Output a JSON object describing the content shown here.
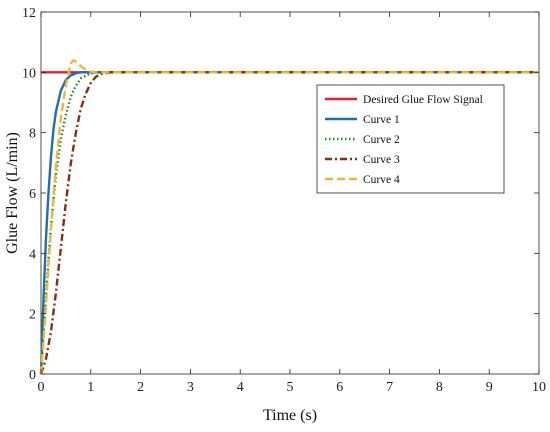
{
  "chart_data": {
    "type": "line",
    "xlabel": "Time (s)",
    "ylabel": "Glue Flow (L/min)",
    "xlim": [
      0,
      10
    ],
    "ylim": [
      0,
      12
    ],
    "xticks": [
      0,
      1,
      2,
      3,
      4,
      5,
      6,
      7,
      8,
      9,
      10
    ],
    "yticks": [
      0,
      2,
      4,
      6,
      8,
      10,
      12
    ],
    "grid": false,
    "legend_position": "right",
    "series": [
      {
        "name": "Desired Glue Flow Signal",
        "color": "#e3212b",
        "style": "solid",
        "x": [
          0,
          10
        ],
        "y": [
          10,
          10
        ]
      },
      {
        "name": "Curve 1",
        "color": "#1f6fb0",
        "style": "solid",
        "x": [
          0,
          0.05,
          0.1,
          0.15,
          0.2,
          0.25,
          0.3,
          0.4,
          0.5,
          0.6,
          0.7,
          0.8,
          1.0,
          1.2,
          1.5,
          2,
          10
        ],
        "y": [
          0,
          2.5,
          4.5,
          6.0,
          7.2,
          8.1,
          8.7,
          9.4,
          9.75,
          9.9,
          9.97,
          10.0,
          10.0,
          10.0,
          10.0,
          10.0,
          10.0
        ]
      },
      {
        "name": "Curve 2",
        "color": "#1a8a1a",
        "style": "dotted",
        "x": [
          0,
          0.05,
          0.1,
          0.15,
          0.2,
          0.3,
          0.4,
          0.5,
          0.6,
          0.7,
          0.8,
          1.0,
          1.2,
          1.5,
          2,
          10
        ],
        "y": [
          0,
          1.3,
          2.6,
          3.8,
          4.9,
          6.6,
          7.8,
          8.6,
          9.2,
          9.55,
          9.8,
          9.97,
          10.0,
          10.0,
          10.0,
          10.0
        ]
      },
      {
        "name": "Curve 3",
        "color": "#8b2c0a",
        "style": "dashdot",
        "x": [
          0,
          0.1,
          0.2,
          0.3,
          0.4,
          0.5,
          0.6,
          0.7,
          0.8,
          0.9,
          1.0,
          1.1,
          1.2,
          1.4,
          1.6,
          2,
          10
        ],
        "y": [
          0,
          0.5,
          1.4,
          2.7,
          4.2,
          5.7,
          7.0,
          8.0,
          8.8,
          9.3,
          9.65,
          9.85,
          9.95,
          10.0,
          10.0,
          10.0,
          10.0
        ]
      },
      {
        "name": "Curve 4",
        "color": "#f2b632",
        "style": "dashed",
        "x": [
          0,
          0.05,
          0.1,
          0.15,
          0.2,
          0.3,
          0.4,
          0.5,
          0.6,
          0.65,
          0.7,
          0.8,
          0.9,
          1.0,
          1.2,
          1.5,
          2,
          10
        ],
        "y": [
          0,
          1.1,
          2.3,
          3.6,
          4.8,
          6.9,
          8.5,
          9.6,
          10.3,
          10.4,
          10.35,
          10.2,
          10.08,
          10.02,
          10.0,
          10.0,
          10.0,
          10.0
        ]
      }
    ]
  }
}
